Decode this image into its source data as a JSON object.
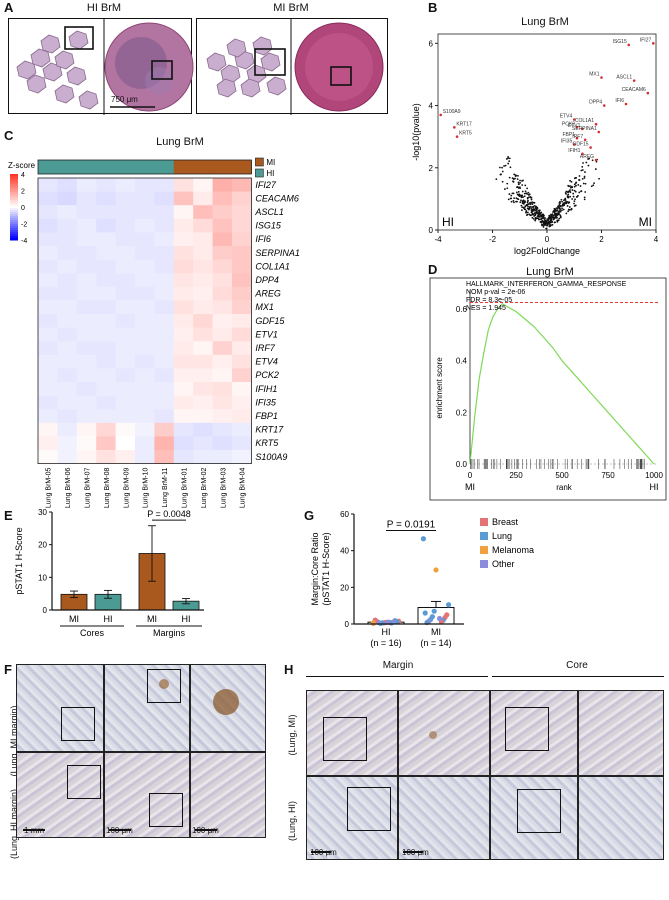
{
  "panelA": {
    "label": "A",
    "title_hi": "HI BrM",
    "title_mi": "MI BrM",
    "scale": "750 μm"
  },
  "panelB": {
    "label": "B",
    "title": "Lung BrM",
    "xlabel": "log2FoldChange",
    "ylabel": "-log10(pvalue)",
    "corner_left": "HI",
    "corner_right": "MI",
    "xticks": [
      "-4",
      "-2",
      "0",
      "2",
      "4"
    ],
    "yticks": [
      "0",
      "2",
      "4",
      "6"
    ],
    "genes": [
      "IFI27",
      "ISG15",
      "MX1",
      "ASCL1",
      "CEACAM6",
      "IFI6",
      "DPP4",
      "ETV4",
      "COL1A1",
      "PCK2",
      "ETV1",
      "SERPINA1",
      "FBP1",
      "IRF7",
      "IFI35",
      "GDF15",
      "IFIH1",
      "AREG",
      "S100A9",
      "KRT17",
      "KRT5"
    ]
  },
  "panelC": {
    "label": "C",
    "title": "Lung BrM",
    "zscore_label": "Z-score",
    "scale_ticks": [
      "4",
      "2",
      "0",
      "-2",
      "-4"
    ],
    "legend_mi": "MI",
    "legend_hi": "HI",
    "genes": [
      "IFI27",
      "CEACAM6",
      "ASCL1",
      "ISG15",
      "IFI6",
      "SERPINA1",
      "COL1A1",
      "DPP4",
      "AREG",
      "MX1",
      "GDF15",
      "ETV1",
      "IRF7",
      "ETV4",
      "PCK2",
      "IFIH1",
      "IFI35",
      "FBP1",
      "KRT17",
      "KRT5",
      "S100A9"
    ],
    "samples": [
      "Lung BrM-05",
      "Lung BrM-06",
      "Lung BrM-07",
      "Lung BrM-08",
      "Lung BrM-09",
      "Lung BrM-10",
      "Lung BrM-11",
      "Lung BrM-01",
      "Lung BrM-02",
      "Lung BrM-03",
      "Lung BrM-04"
    ]
  },
  "panelD": {
    "label": "D",
    "title": "Lung BrM",
    "gene_set": "HALLMARK_INTERFERON_GAMMA_RESPONSE",
    "stats": [
      "NOM p-val = 2e-06",
      "FDR = 8.3e-05",
      "NES = 1.945"
    ],
    "ylabel": "enrichment score",
    "xlabel": "rank",
    "x_left": "MI",
    "x_right": "HI",
    "xticks": [
      "0",
      "250",
      "500",
      "750",
      "1000"
    ],
    "yticks": [
      "0.6",
      "0.4",
      "0.2",
      "0.0"
    ]
  },
  "panelE": {
    "label": "E",
    "ylabel": "pSTAT1 H-Score",
    "pvalue": "P = 0.0048",
    "yticks": [
      "30",
      "20",
      "10",
      "0"
    ],
    "groups": [
      "Cores",
      "Margins"
    ]
  },
  "panelG": {
    "label": "G",
    "ylabel": "Margin:Core Ratio",
    "ylabel2": "(pSTAT1 H-Score)",
    "pvalue": "P = 0.0191",
    "yticks": [
      "60",
      "40",
      "20",
      "0"
    ],
    "cat1": "HI",
    "cat1n": "(n = 16)",
    "cat2": "MI",
    "cat2n": "(n = 14)",
    "legend": [
      {
        "name": "Breast",
        "color": "#e57373"
      },
      {
        "name": "Lung",
        "color": "#5b9bd5"
      },
      {
        "name": "Melanoma",
        "color": "#f0a03c"
      },
      {
        "name": "Other",
        "color": "#8c8cdc"
      }
    ]
  },
  "panelF": {
    "label": "F",
    "row1": "(Lung, MI margin)",
    "row2": "(Lung, HI margin)",
    "scale1": "1 mm",
    "scale2": "100 μm",
    "scale3": "100 μm"
  },
  "panelH": {
    "label": "H",
    "col_margin": "Margin",
    "col_core": "Core",
    "row1": "(Lung, MI)",
    "row2": "(Lung, HI)",
    "scale1": "100 μm",
    "scale2": "100 μm"
  },
  "chart_data": [
    {
      "type": "scatter",
      "title": "Lung BrM",
      "xlabel": "log2FoldChange",
      "ylabel": "-log10(pvalue)",
      "xlim": [
        -4,
        4
      ],
      "ylim": [
        0,
        6.3
      ],
      "highlighted": [
        {
          "gene": "IFI27",
          "x": 3.9,
          "y": 6.0
        },
        {
          "gene": "ISG15",
          "x": 3.0,
          "y": 5.95
        },
        {
          "gene": "MX1",
          "x": 2.0,
          "y": 4.9
        },
        {
          "gene": "ASCL1",
          "x": 3.2,
          "y": 4.8
        },
        {
          "gene": "CEACAM6",
          "x": 3.7,
          "y": 4.4
        },
        {
          "gene": "IFI6",
          "x": 2.9,
          "y": 4.05
        },
        {
          "gene": "DPP4",
          "x": 2.1,
          "y": 4.0
        },
        {
          "gene": "ETV4",
          "x": 1.0,
          "y": 3.55
        },
        {
          "gene": "COL1A1",
          "x": 1.8,
          "y": 3.4
        },
        {
          "gene": "PCK2",
          "x": 1.1,
          "y": 3.3
        },
        {
          "gene": "ETV1",
          "x": 1.3,
          "y": 3.25
        },
        {
          "gene": "SERPINA1",
          "x": 1.9,
          "y": 3.15
        },
        {
          "gene": "FBP1",
          "x": 1.1,
          "y": 2.95
        },
        {
          "gene": "IRF7",
          "x": 1.4,
          "y": 2.9
        },
        {
          "gene": "IFI35",
          "x": 1.0,
          "y": 2.75
        },
        {
          "gene": "GDF15",
          "x": 1.6,
          "y": 2.65
        },
        {
          "gene": "IFIH1",
          "x": 1.3,
          "y": 2.45
        },
        {
          "gene": "AREG",
          "x": 1.8,
          "y": 2.25
        },
        {
          "gene": "S100A9",
          "x": -3.9,
          "y": 3.7
        },
        {
          "gene": "KRT17",
          "x": -3.4,
          "y": 3.3
        },
        {
          "gene": "KRT5",
          "x": -3.3,
          "y": 3.0
        }
      ]
    },
    {
      "type": "heatmap",
      "title": "Lung BrM",
      "zlim": [
        -4,
        4
      ],
      "rows": [
        "IFI27",
        "CEACAM6",
        "ASCL1",
        "ISG15",
        "IFI6",
        "SERPINA1",
        "COL1A1",
        "DPP4",
        "AREG",
        "MX1",
        "GDF15",
        "ETV1",
        "IRF7",
        "ETV4",
        "PCK2",
        "IFIH1",
        "IFI35",
        "FBP1",
        "KRT17",
        "KRT5",
        "S100A9"
      ],
      "cols": [
        "Lung BrM-05",
        "Lung BrM-06",
        "Lung BrM-07",
        "Lung BrM-08",
        "Lung BrM-09",
        "Lung BrM-10",
        "Lung BrM-11",
        "Lung BrM-01",
        "Lung BrM-02",
        "Lung BrM-03",
        "Lung BrM-04"
      ],
      "groups": [
        "HI",
        "HI",
        "HI",
        "HI",
        "HI",
        "HI",
        "HI",
        "MI",
        "MI",
        "MI",
        "MI"
      ],
      "values": [
        [
          -0.4,
          -0.5,
          -0.3,
          -0.4,
          -0.3,
          -0.4,
          -0.4,
          0.6,
          0.2,
          1.6,
          1.4
        ],
        [
          -0.5,
          -0.6,
          -0.4,
          -0.5,
          -0.4,
          -0.4,
          -0.5,
          1.2,
          0.4,
          1.3,
          0.9
        ],
        [
          -0.4,
          -0.3,
          -0.4,
          -0.4,
          -0.4,
          -0.4,
          -0.4,
          0.2,
          1.3,
          1.0,
          0.8
        ],
        [
          -0.5,
          -0.4,
          -0.3,
          -0.5,
          -0.4,
          -0.3,
          -0.4,
          0.4,
          0.7,
          1.2,
          0.8
        ],
        [
          -0.4,
          -0.4,
          -0.3,
          -0.3,
          -0.4,
          -0.4,
          -0.3,
          0.3,
          0.4,
          1.4,
          0.9
        ],
        [
          -0.3,
          -0.4,
          -0.4,
          -0.3,
          -0.3,
          -0.4,
          -0.4,
          0.6,
          0.4,
          1.0,
          1.1
        ],
        [
          -0.4,
          -0.3,
          -0.4,
          -0.4,
          -0.3,
          -0.3,
          -0.4,
          0.7,
          0.5,
          0.8,
          1.1
        ],
        [
          -0.3,
          -0.4,
          -0.3,
          -0.4,
          -0.4,
          -0.3,
          -0.3,
          0.5,
          0.4,
          0.6,
          1.2
        ],
        [
          -0.4,
          -0.4,
          -0.3,
          -0.3,
          -0.4,
          -0.4,
          -0.3,
          0.4,
          0.3,
          0.7,
          1.0
        ],
        [
          -0.3,
          -0.3,
          -0.4,
          -0.4,
          -0.3,
          -0.3,
          -0.4,
          0.6,
          0.4,
          0.5,
          0.9
        ],
        [
          -0.4,
          -0.3,
          -0.3,
          -0.3,
          -0.4,
          -0.3,
          -0.3,
          0.4,
          0.8,
          0.3,
          0.4
        ],
        [
          -0.3,
          -0.4,
          -0.3,
          -0.3,
          -0.3,
          -0.3,
          -0.3,
          0.3,
          0.6,
          0.4,
          0.7
        ],
        [
          -0.4,
          -0.3,
          -0.4,
          -0.4,
          -0.3,
          -0.3,
          -0.3,
          0.4,
          0.2,
          0.9,
          0.4
        ],
        [
          -0.3,
          -0.3,
          -0.3,
          -0.4,
          -0.3,
          -0.4,
          -0.3,
          0.5,
          0.5,
          0.3,
          0.6
        ],
        [
          -0.3,
          -0.4,
          -0.3,
          -0.3,
          -0.4,
          -0.3,
          -0.4,
          0.3,
          0.3,
          0.2,
          0.9
        ],
        [
          -0.3,
          -0.3,
          -0.4,
          -0.3,
          -0.3,
          -0.3,
          -0.3,
          0.2,
          0.5,
          0.6,
          0.2
        ],
        [
          -0.4,
          -0.3,
          -0.3,
          -0.4,
          -0.3,
          -0.3,
          -0.3,
          0.4,
          0.3,
          0.5,
          0.3
        ],
        [
          -0.3,
          -0.4,
          -0.3,
          -0.3,
          -0.3,
          -0.3,
          -0.4,
          0.2,
          0.2,
          0.3,
          0.4
        ],
        [
          0.2,
          -0.3,
          0.2,
          0.8,
          0.1,
          -0.2,
          1.0,
          -0.4,
          -0.5,
          -0.4,
          -0.3
        ],
        [
          0.3,
          -0.2,
          0.1,
          1.1,
          0.0,
          -0.3,
          1.5,
          -0.5,
          -0.4,
          -0.5,
          -0.4
        ],
        [
          0.1,
          -0.2,
          0.2,
          0.6,
          0.3,
          -0.3,
          1.3,
          -0.4,
          -0.3,
          -0.3,
          -0.2
        ]
      ]
    },
    {
      "type": "line",
      "title": "Lung BrM",
      "xlabel": "rank",
      "ylabel": "enrichment score",
      "xlim": [
        0,
        1000
      ],
      "ylim": [
        0,
        0.65
      ],
      "x": [
        0,
        25,
        50,
        75,
        100,
        125,
        150,
        175,
        200,
        250,
        300,
        350,
        400,
        450,
        500,
        550,
        600,
        650,
        700,
        750,
        800,
        850,
        900,
        950,
        1000
      ],
      "y": [
        0.0,
        0.18,
        0.33,
        0.43,
        0.52,
        0.57,
        0.6,
        0.62,
        0.61,
        0.59,
        0.56,
        0.53,
        0.49,
        0.45,
        0.4,
        0.36,
        0.32,
        0.28,
        0.24,
        0.2,
        0.16,
        0.12,
        0.08,
        0.04,
        0.0
      ],
      "max_es": 0.625
    },
    {
      "type": "bar",
      "ylabel": "pSTAT1 H-Score",
      "ylim": [
        0,
        30
      ],
      "categories": [
        "MI",
        "HI",
        "MI",
        "HI"
      ],
      "groups": [
        "Cores",
        "Cores",
        "Margins",
        "Margins"
      ],
      "values": [
        4.8,
        4.8,
        17.3,
        2.7
      ],
      "errors": [
        1.0,
        1.2,
        8.5,
        0.8
      ],
      "colors": [
        "#a9581e",
        "#4c9a94",
        "#a9581e",
        "#4c9a94"
      ],
      "annotation": "P = 0.0048"
    },
    {
      "type": "bar",
      "ylabel": "Margin:Core Ratio (pSTAT1 H-Score)",
      "ylim": [
        0,
        60
      ],
      "categories": [
        "HI (n = 16)",
        "MI (n = 14)"
      ],
      "values": [
        1.0,
        9.0
      ],
      "errors": [
        0.2,
        3.3
      ],
      "points": [
        {
          "cat": "HI",
          "y": 0.4,
          "group": "Breast"
        },
        {
          "cat": "HI",
          "y": 0.9,
          "group": "Breast"
        },
        {
          "cat": "HI",
          "y": 1.5,
          "group": "Breast"
        },
        {
          "cat": "HI",
          "y": 0.7,
          "group": "Breast"
        },
        {
          "cat": "HI",
          "y": 1.2,
          "group": "Lung"
        },
        {
          "cat": "HI",
          "y": 0.6,
          "group": "Lung"
        },
        {
          "cat": "HI",
          "y": 1.8,
          "group": "Lung"
        },
        {
          "cat": "HI",
          "y": 0.3,
          "group": "Lung"
        },
        {
          "cat": "HI",
          "y": 1.1,
          "group": "Other"
        },
        {
          "cat": "HI",
          "y": 0.8,
          "group": "Other"
        },
        {
          "cat": "HI",
          "y": 0.5,
          "group": "Other"
        },
        {
          "cat": "HI",
          "y": 1.4,
          "group": "Other"
        },
        {
          "cat": "HI",
          "y": 0.9,
          "group": "Lung"
        },
        {
          "cat": "HI",
          "y": 2.1,
          "group": "Breast"
        },
        {
          "cat": "HI",
          "y": 1.0,
          "group": "Other"
        },
        {
          "cat": "HI",
          "y": 0.6,
          "group": "Melanoma"
        },
        {
          "cat": "MI",
          "y": 46.5,
          "group": "Lung"
        },
        {
          "cat": "MI",
          "y": 29.5,
          "group": "Melanoma"
        },
        {
          "cat": "MI",
          "y": 10.5,
          "group": "Lung"
        },
        {
          "cat": "MI",
          "y": 7.0,
          "group": "Lung"
        },
        {
          "cat": "MI",
          "y": 5.0,
          "group": "Breast"
        },
        {
          "cat": "MI",
          "y": 4.0,
          "group": "Lung"
        },
        {
          "cat": "MI",
          "y": 3.5,
          "group": "Breast"
        },
        {
          "cat": "MI",
          "y": 2.5,
          "group": "Lung"
        },
        {
          "cat": "MI",
          "y": 2.0,
          "group": "Lung"
        },
        {
          "cat": "MI",
          "y": 1.5,
          "group": "Other"
        },
        {
          "cat": "MI",
          "y": 1.2,
          "group": "Breast"
        },
        {
          "cat": "MI",
          "y": 0.8,
          "group": "Lung"
        },
        {
          "cat": "MI",
          "y": 3.0,
          "group": "Other"
        },
        {
          "cat": "MI",
          "y": 6.0,
          "group": "Lung"
        }
      ],
      "annotation": "P = 0.0191"
    }
  ]
}
